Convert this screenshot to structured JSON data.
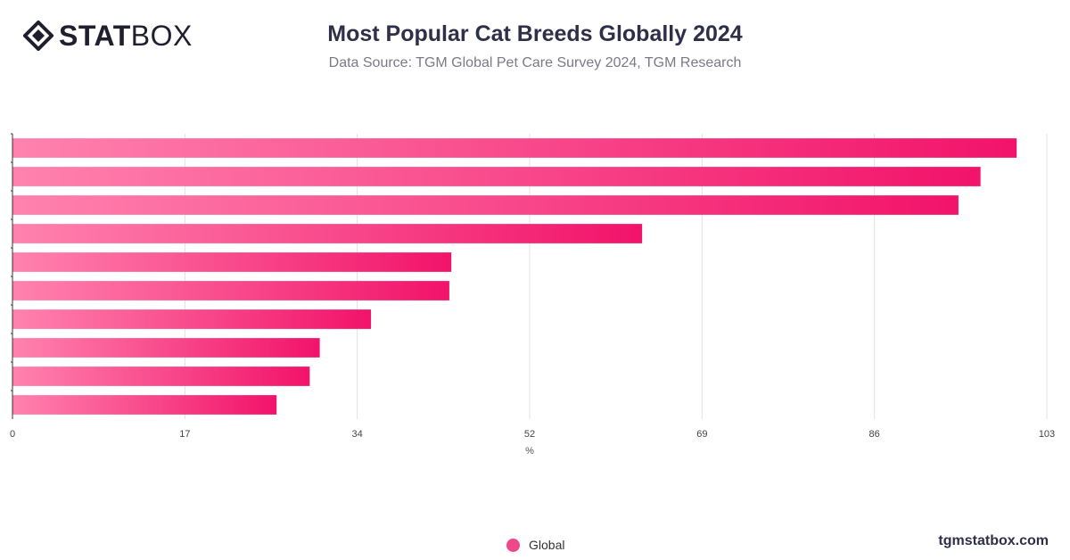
{
  "header": {
    "logo_bold": "STAT",
    "logo_regular": "BOX",
    "title": "Most Popular Cat Breeds Globally 2024",
    "subtitle": "Data Source: TGM Global Pet Care Survey 2024, TGM Research"
  },
  "footer": {
    "site": "tgmstatbox.com"
  },
  "colors": {
    "bar_start": "#ff82ae",
    "bar_end": "#f2136a",
    "grid": "#e3e3e3",
    "axis": "#333333"
  },
  "chart_data": {
    "type": "bar",
    "orientation": "horizontal",
    "title": "Most Popular Cat Breeds Globally 2024",
    "subtitle": "Data Source: TGM Global Pet Care Survey 2024, TGM Research",
    "xlabel": "%",
    "ylabel": "",
    "xlim": [
      0,
      103
    ],
    "xticks": [
      "0",
      "17",
      "34",
      "52",
      "69",
      "86",
      "103"
    ],
    "xtick_values": [
      0,
      17.17,
      34.33,
      51.5,
      68.67,
      85.83,
      103
    ],
    "categories": [
      "",
      "",
      "",
      "",
      "",
      "",
      "",
      "",
      "",
      ""
    ],
    "series": [
      {
        "name": "Global",
        "values": [
          100,
          96.4,
          94.2,
          62.7,
          43.7,
          43.5,
          35.7,
          30.6,
          29.6,
          26.3
        ]
      }
    ],
    "grid": true,
    "legend": "bottom-center"
  }
}
